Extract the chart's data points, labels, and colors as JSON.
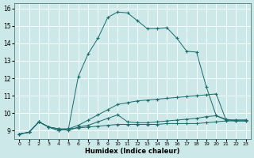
{
  "title": "",
  "xlabel": "Humidex (Indice chaleur)",
  "background_color": "#cce8e8",
  "grid_color": "#ffffff",
  "line_color": "#1a6b6b",
  "xlim": [
    -0.5,
    23.5
  ],
  "ylim": [
    8.5,
    16.3
  ],
  "yticks": [
    9,
    10,
    11,
    12,
    13,
    14,
    15,
    16
  ],
  "xticks": [
    0,
    1,
    2,
    3,
    4,
    5,
    6,
    7,
    8,
    9,
    10,
    11,
    12,
    13,
    14,
    15,
    16,
    17,
    18,
    19,
    20,
    21,
    22,
    23
  ],
  "series": [
    {
      "x": [
        0,
        1,
        2,
        3,
        4,
        5,
        6,
        7,
        8,
        9,
        10,
        11,
        12,
        13,
        14,
        15,
        16,
        17,
        18,
        19,
        20,
        21,
        22,
        23
      ],
      "y": [
        8.8,
        8.9,
        9.5,
        9.2,
        9.1,
        9.1,
        9.15,
        9.2,
        9.25,
        9.3,
        9.35,
        9.35,
        9.35,
        9.35,
        9.35,
        9.4,
        9.4,
        9.4,
        9.4,
        9.45,
        9.5,
        9.55,
        9.55,
        9.55
      ]
    },
    {
      "x": [
        0,
        1,
        2,
        3,
        4,
        5,
        6,
        7,
        8,
        9,
        10,
        11,
        12,
        13,
        14,
        15,
        16,
        17,
        18,
        19,
        20,
        21,
        22,
        23
      ],
      "y": [
        8.8,
        8.9,
        9.5,
        9.2,
        9.1,
        9.0,
        9.2,
        9.3,
        9.5,
        9.7,
        9.9,
        9.5,
        9.45,
        9.45,
        9.5,
        9.55,
        9.6,
        9.65,
        9.7,
        9.8,
        9.85,
        9.6,
        9.6,
        9.6
      ]
    },
    {
      "x": [
        0,
        1,
        2,
        3,
        4,
        5,
        6,
        7,
        8,
        9,
        10,
        11,
        12,
        13,
        14,
        15,
        16,
        17,
        18,
        19,
        20,
        21,
        22,
        23
      ],
      "y": [
        8.8,
        8.9,
        9.5,
        9.2,
        9.0,
        9.1,
        9.3,
        9.6,
        9.9,
        10.2,
        10.5,
        10.6,
        10.7,
        10.75,
        10.8,
        10.85,
        10.9,
        10.95,
        11.0,
        11.05,
        11.1,
        9.6,
        9.6,
        9.6
      ]
    },
    {
      "x": [
        0,
        1,
        2,
        3,
        4,
        5,
        6,
        7,
        8,
        9,
        10,
        11,
        12,
        13,
        14,
        15,
        16,
        17,
        18,
        19,
        20,
        21,
        22,
        23
      ],
      "y": [
        8.8,
        8.9,
        9.5,
        9.2,
        9.0,
        9.1,
        12.1,
        13.4,
        14.3,
        15.5,
        15.8,
        15.75,
        15.3,
        14.85,
        14.85,
        14.9,
        14.3,
        13.55,
        13.5,
        11.5,
        9.85,
        9.65,
        9.55,
        9.55
      ]
    }
  ]
}
